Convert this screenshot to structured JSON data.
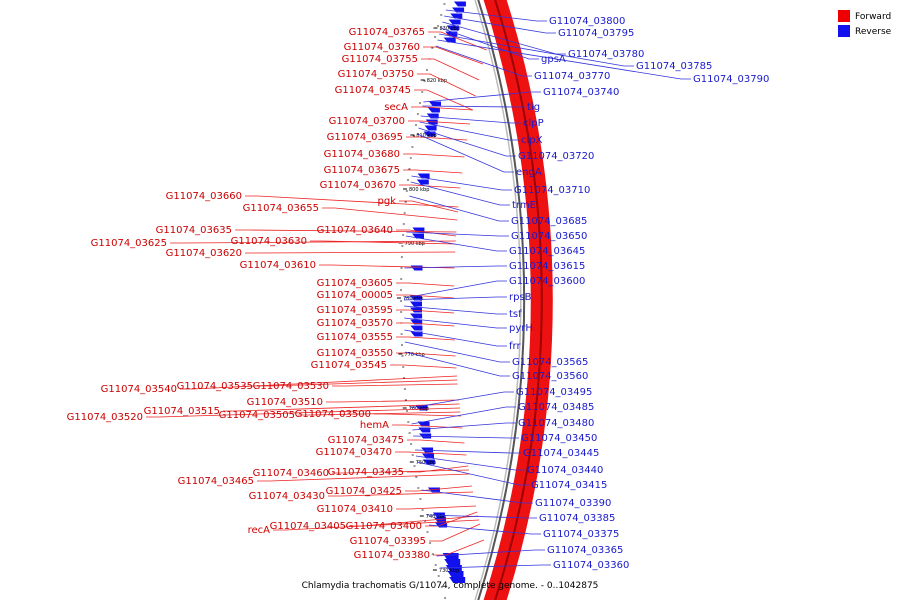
{
  "caption": "Chlamydia trachomatis G/11074, complete genome. - 0..1042875",
  "legend": [
    {
      "label": "Forward",
      "color": "#ee0000"
    },
    {
      "label": "Reverse",
      "color": "#1111ee"
    }
  ],
  "ring": {
    "forward_color": "#ee1111",
    "backbone_color": "#555555"
  },
  "ticks": [
    "830 kbp",
    "820 kbp",
    "810 kbp",
    "800 kbp",
    "790 kbp",
    "780 kbp",
    "770 kbp",
    "760 kbp",
    "750 kbp",
    "740 kbp",
    "730 kbp"
  ],
  "forward_labels": [
    "G11074_03765",
    "G11074_03760",
    "G11074_03755",
    "G11074_03750",
    "G11074_03745",
    "secA",
    "G11074_03700",
    "G11074_03695",
    "G11074_03680",
    "G11074_03675",
    "G11074_03670",
    "G11074_03660",
    "pgk",
    "G11074_03655",
    "G11074_03635",
    "G11074_03640",
    "G11074_03625",
    "G11074_03630",
    "G11074_03620",
    "G11074_03610",
    "G11074_03605",
    "G11074_00005",
    "G11074_03595",
    "G11074_03570",
    "G11074_03555",
    "G11074_03550",
    "G11074_03545",
    "G11074_03540",
    "G11074_03535",
    "G11074_03530",
    "G11074_03510",
    "G11074_03515",
    "G11074_03520",
    "G11074_03505",
    "G11074_03500",
    "hemA",
    "G11074_03475",
    "G11074_03470",
    "G11074_03460",
    "G11074_03435",
    "G11074_03465",
    "G11074_03425",
    "G11074_03430",
    "G11074_03410",
    "recA",
    "G11074_03405",
    "G11074_03400",
    "G11074_03395",
    "G11074_03380"
  ],
  "reverse_labels": [
    "G11074_03800",
    "G11074_03795",
    "G11074_03780",
    "gpsA",
    "G11074_03785",
    "G11074_03790",
    "G11074_03770",
    "G11074_03740",
    "tig",
    "clpP",
    "clpX",
    "G11074_03720",
    "engA",
    "G11074_03710",
    "trmE",
    "G11074_03685",
    "G11074_03650",
    "G11074_03645",
    "G11074_03615",
    "G11074_03600",
    "rpsB",
    "tsf",
    "pyrH",
    "frr",
    "G11074_03565",
    "G11074_03560",
    "G11074_03495",
    "G11074_03485",
    "G11074_03480",
    "G11074_03450",
    "G11074_03445",
    "G11074_03440",
    "G11074_03415",
    "G11074_03390",
    "G11074_03385",
    "G11074_03375",
    "G11074_03365",
    "G11074_03360"
  ]
}
